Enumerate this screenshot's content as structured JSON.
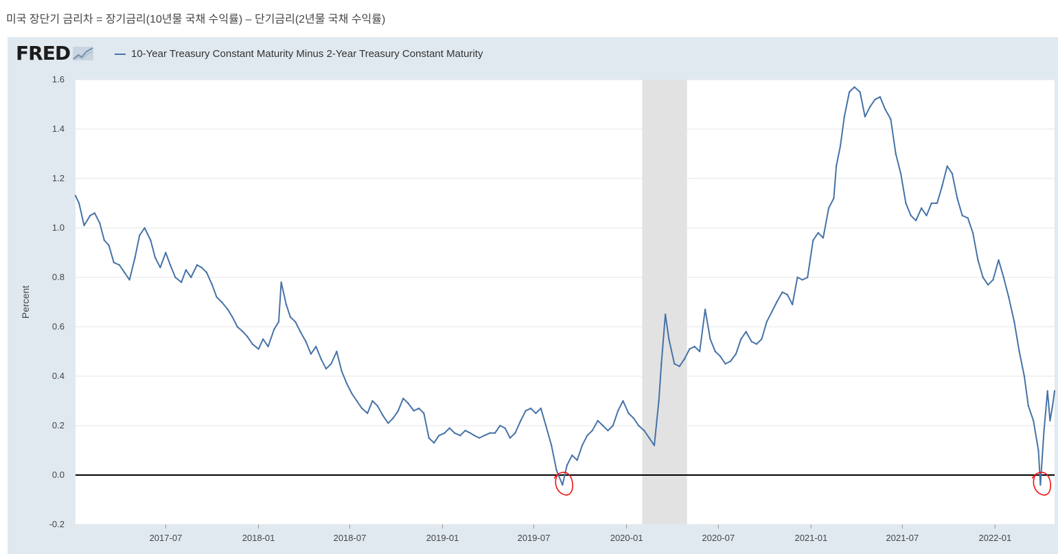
{
  "page": {
    "heading": "미국 장단기 금리차 = 장기금리(10년물 국채 수익률) – 단기금리(2년물 국채 수익률)"
  },
  "brand": {
    "logo_text": "FRED"
  },
  "colors": {
    "series": "#4572a7",
    "panel_bg": "#e1e9f0",
    "plot_bg": "#ffffff",
    "grid": "#e6e6e6",
    "recession": "#e2e2e2",
    "zero_line": "#000000",
    "annotation": "#ee1111"
  },
  "chart_data": {
    "type": "line",
    "title": "",
    "xlabel": "",
    "ylabel": "Percent",
    "ylim": [
      -0.2,
      1.6
    ],
    "y_ticks": [
      "1.6",
      "1.4",
      "1.2",
      "1.0",
      "0.8",
      "0.6",
      "0.4",
      "0.2",
      "0.0",
      "-0.2"
    ],
    "x_range": [
      "2017-01-03",
      "2022-04-29"
    ],
    "x_ticks": [
      "2017-07",
      "2018-01",
      "2018-07",
      "2019-01",
      "2019-07",
      "2020-01",
      "2020-07",
      "2021-01",
      "2021-07",
      "2022-01"
    ],
    "grid": true,
    "legend_position": "top-left",
    "recession_shading": [
      [
        "2020-02-01",
        "2020-04-30"
      ]
    ],
    "reference_line": 0,
    "annotations": [
      {
        "type": "hand-drawn circle",
        "color": "red",
        "near": "2019-08-27"
      },
      {
        "type": "hand-drawn circle",
        "color": "red",
        "near": "2022-04-01"
      }
    ],
    "series": [
      {
        "name": "10-Year Treasury Constant Maturity Minus 2-Year Treasury Constant Maturity",
        "points": [
          [
            "2017-01-03",
            1.13
          ],
          [
            "2017-01-10",
            1.1
          ],
          [
            "2017-01-20",
            1.01
          ],
          [
            "2017-02-01",
            1.05
          ],
          [
            "2017-02-10",
            1.06
          ],
          [
            "2017-02-20",
            1.02
          ],
          [
            "2017-03-01",
            0.95
          ],
          [
            "2017-03-10",
            0.93
          ],
          [
            "2017-03-20",
            0.86
          ],
          [
            "2017-03-31",
            0.85
          ],
          [
            "2017-04-10",
            0.82
          ],
          [
            "2017-04-20",
            0.79
          ],
          [
            "2017-05-01",
            0.88
          ],
          [
            "2017-05-10",
            0.97
          ],
          [
            "2017-05-20",
            1.0
          ],
          [
            "2017-06-01",
            0.95
          ],
          [
            "2017-06-10",
            0.88
          ],
          [
            "2017-06-20",
            0.84
          ],
          [
            "2017-07-01",
            0.9
          ],
          [
            "2017-07-10",
            0.85
          ],
          [
            "2017-07-20",
            0.8
          ],
          [
            "2017-08-01",
            0.78
          ],
          [
            "2017-08-10",
            0.83
          ],
          [
            "2017-08-20",
            0.8
          ],
          [
            "2017-09-01",
            0.85
          ],
          [
            "2017-09-10",
            0.84
          ],
          [
            "2017-09-20",
            0.82
          ],
          [
            "2017-10-01",
            0.77
          ],
          [
            "2017-10-10",
            0.72
          ],
          [
            "2017-10-20",
            0.7
          ],
          [
            "2017-11-01",
            0.67
          ],
          [
            "2017-11-10",
            0.64
          ],
          [
            "2017-11-20",
            0.6
          ],
          [
            "2017-12-01",
            0.58
          ],
          [
            "2017-12-10",
            0.56
          ],
          [
            "2017-12-20",
            0.53
          ],
          [
            "2018-01-01",
            0.51
          ],
          [
            "2018-01-10",
            0.55
          ],
          [
            "2018-01-20",
            0.52
          ],
          [
            "2018-02-01",
            0.59
          ],
          [
            "2018-02-10",
            0.62
          ],
          [
            "2018-02-15",
            0.78
          ],
          [
            "2018-02-25",
            0.69
          ],
          [
            "2018-03-05",
            0.64
          ],
          [
            "2018-03-15",
            0.62
          ],
          [
            "2018-03-25",
            0.58
          ],
          [
            "2018-04-05",
            0.54
          ],
          [
            "2018-04-15",
            0.49
          ],
          [
            "2018-04-25",
            0.52
          ],
          [
            "2018-05-05",
            0.47
          ],
          [
            "2018-05-15",
            0.43
          ],
          [
            "2018-05-25",
            0.45
          ],
          [
            "2018-06-05",
            0.5
          ],
          [
            "2018-06-15",
            0.42
          ],
          [
            "2018-06-25",
            0.37
          ],
          [
            "2018-07-05",
            0.33
          ],
          [
            "2018-07-15",
            0.3
          ],
          [
            "2018-07-25",
            0.27
          ],
          [
            "2018-08-05",
            0.25
          ],
          [
            "2018-08-15",
            0.3
          ],
          [
            "2018-08-25",
            0.28
          ],
          [
            "2018-09-05",
            0.24
          ],
          [
            "2018-09-15",
            0.21
          ],
          [
            "2018-09-25",
            0.23
          ],
          [
            "2018-10-05",
            0.26
          ],
          [
            "2018-10-15",
            0.31
          ],
          [
            "2018-10-25",
            0.29
          ],
          [
            "2018-11-05",
            0.26
          ],
          [
            "2018-11-15",
            0.27
          ],
          [
            "2018-11-25",
            0.25
          ],
          [
            "2018-12-05",
            0.15
          ],
          [
            "2018-12-15",
            0.13
          ],
          [
            "2018-12-25",
            0.16
          ],
          [
            "2019-01-05",
            0.17
          ],
          [
            "2019-01-15",
            0.19
          ],
          [
            "2019-01-25",
            0.17
          ],
          [
            "2019-02-05",
            0.16
          ],
          [
            "2019-02-15",
            0.18
          ],
          [
            "2019-02-25",
            0.17
          ],
          [
            "2019-03-05",
            0.16
          ],
          [
            "2019-03-15",
            0.15
          ],
          [
            "2019-03-25",
            0.16
          ],
          [
            "2019-04-05",
            0.17
          ],
          [
            "2019-04-15",
            0.17
          ],
          [
            "2019-04-25",
            0.2
          ],
          [
            "2019-05-05",
            0.19
          ],
          [
            "2019-05-15",
            0.15
          ],
          [
            "2019-05-25",
            0.17
          ],
          [
            "2019-06-05",
            0.22
          ],
          [
            "2019-06-15",
            0.26
          ],
          [
            "2019-06-25",
            0.27
          ],
          [
            "2019-07-05",
            0.25
          ],
          [
            "2019-07-15",
            0.27
          ],
          [
            "2019-07-25",
            0.2
          ],
          [
            "2019-08-05",
            0.12
          ],
          [
            "2019-08-15",
            0.02
          ],
          [
            "2019-08-27",
            -0.04
          ],
          [
            "2019-09-05",
            0.04
          ],
          [
            "2019-09-15",
            0.08
          ],
          [
            "2019-09-25",
            0.06
          ],
          [
            "2019-10-05",
            0.12
          ],
          [
            "2019-10-15",
            0.16
          ],
          [
            "2019-10-25",
            0.18
          ],
          [
            "2019-11-05",
            0.22
          ],
          [
            "2019-11-15",
            0.2
          ],
          [
            "2019-11-25",
            0.18
          ],
          [
            "2019-12-05",
            0.2
          ],
          [
            "2019-12-15",
            0.26
          ],
          [
            "2019-12-25",
            0.3
          ],
          [
            "2020-01-05",
            0.25
          ],
          [
            "2020-01-15",
            0.23
          ],
          [
            "2020-01-25",
            0.2
          ],
          [
            "2020-02-05",
            0.18
          ],
          [
            "2020-02-15",
            0.15
          ],
          [
            "2020-02-25",
            0.12
          ],
          [
            "2020-03-05",
            0.3
          ],
          [
            "2020-03-10",
            0.45
          ],
          [
            "2020-03-18",
            0.65
          ],
          [
            "2020-03-25",
            0.55
          ],
          [
            "2020-04-05",
            0.45
          ],
          [
            "2020-04-15",
            0.44
          ],
          [
            "2020-04-25",
            0.47
          ],
          [
            "2020-05-05",
            0.51
          ],
          [
            "2020-05-15",
            0.52
          ],
          [
            "2020-05-25",
            0.5
          ],
          [
            "2020-06-05",
            0.67
          ],
          [
            "2020-06-15",
            0.55
          ],
          [
            "2020-06-25",
            0.5
          ],
          [
            "2020-07-05",
            0.48
          ],
          [
            "2020-07-15",
            0.45
          ],
          [
            "2020-07-25",
            0.46
          ],
          [
            "2020-08-05",
            0.49
          ],
          [
            "2020-08-15",
            0.55
          ],
          [
            "2020-08-25",
            0.58
          ],
          [
            "2020-09-05",
            0.54
          ],
          [
            "2020-09-15",
            0.53
          ],
          [
            "2020-09-25",
            0.55
          ],
          [
            "2020-10-05",
            0.62
          ],
          [
            "2020-10-15",
            0.66
          ],
          [
            "2020-10-25",
            0.7
          ],
          [
            "2020-11-05",
            0.74
          ],
          [
            "2020-11-15",
            0.73
          ],
          [
            "2020-11-25",
            0.69
          ],
          [
            "2020-12-05",
            0.8
          ],
          [
            "2020-12-15",
            0.79
          ],
          [
            "2020-12-25",
            0.8
          ],
          [
            "2021-01-05",
            0.95
          ],
          [
            "2021-01-15",
            0.98
          ],
          [
            "2021-01-25",
            0.96
          ],
          [
            "2021-02-05",
            1.08
          ],
          [
            "2021-02-15",
            1.12
          ],
          [
            "2021-02-20",
            1.25
          ],
          [
            "2021-02-28",
            1.33
          ],
          [
            "2021-03-08",
            1.45
          ],
          [
            "2021-03-18",
            1.55
          ],
          [
            "2021-03-28",
            1.57
          ],
          [
            "2021-04-08",
            1.55
          ],
          [
            "2021-04-18",
            1.45
          ],
          [
            "2021-04-28",
            1.49
          ],
          [
            "2021-05-08",
            1.52
          ],
          [
            "2021-05-18",
            1.53
          ],
          [
            "2021-05-28",
            1.48
          ],
          [
            "2021-06-08",
            1.44
          ],
          [
            "2021-06-18",
            1.3
          ],
          [
            "2021-06-28",
            1.22
          ],
          [
            "2021-07-08",
            1.1
          ],
          [
            "2021-07-18",
            1.05
          ],
          [
            "2021-07-28",
            1.03
          ],
          [
            "2021-08-08",
            1.08
          ],
          [
            "2021-08-18",
            1.05
          ],
          [
            "2021-08-28",
            1.1
          ],
          [
            "2021-09-08",
            1.1
          ],
          [
            "2021-09-18",
            1.17
          ],
          [
            "2021-09-28",
            1.25
          ],
          [
            "2021-10-08",
            1.22
          ],
          [
            "2021-10-18",
            1.12
          ],
          [
            "2021-10-28",
            1.05
          ],
          [
            "2021-11-08",
            1.04
          ],
          [
            "2021-11-18",
            0.98
          ],
          [
            "2021-11-28",
            0.87
          ],
          [
            "2021-12-08",
            0.8
          ],
          [
            "2021-12-18",
            0.77
          ],
          [
            "2021-12-28",
            0.79
          ],
          [
            "2022-01-08",
            0.87
          ],
          [
            "2022-01-18",
            0.8
          ],
          [
            "2022-01-28",
            0.72
          ],
          [
            "2022-02-08",
            0.62
          ],
          [
            "2022-02-18",
            0.5
          ],
          [
            "2022-02-28",
            0.4
          ],
          [
            "2022-03-08",
            0.28
          ],
          [
            "2022-03-18",
            0.22
          ],
          [
            "2022-03-28",
            0.1
          ],
          [
            "2022-04-01",
            -0.04
          ],
          [
            "2022-04-08",
            0.18
          ],
          [
            "2022-04-15",
            0.34
          ],
          [
            "2022-04-20",
            0.22
          ],
          [
            "2022-04-25",
            0.28
          ],
          [
            "2022-04-29",
            0.34
          ]
        ]
      }
    ]
  }
}
